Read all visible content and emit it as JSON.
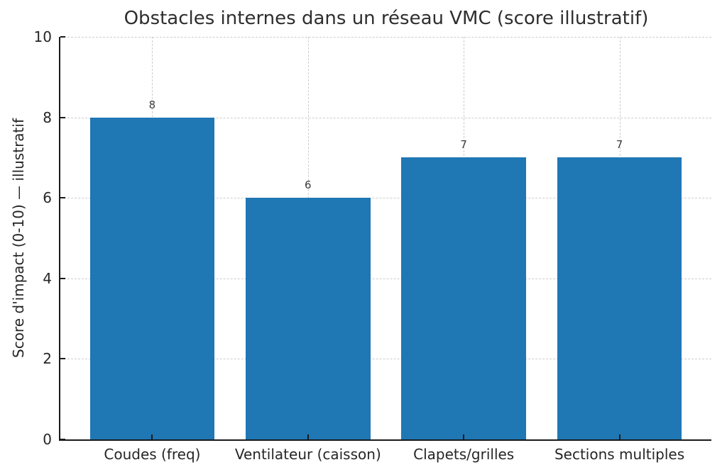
{
  "figure": {
    "background": "#ffffff"
  },
  "chart_data": {
    "type": "bar",
    "title": "Obstacles internes dans un réseau VMC (score illustratif)",
    "categories": [
      "Coudes (freq)",
      "Ventilateur (caisson)",
      "Clapets/grilles",
      "Sections multiples"
    ],
    "values": [
      8,
      6,
      7,
      7
    ],
    "bar_value_labels": [
      "8",
      "6",
      "7",
      "7"
    ],
    "xlabel": "",
    "ylabel": "Score d'impact (0-10) — illustratif",
    "ylim": [
      0,
      10
    ],
    "yticks": [
      0,
      2,
      4,
      6,
      8,
      10
    ],
    "xlim": [
      -0.59,
      3.59
    ],
    "bar_width": 0.8,
    "bar_color": "#1f77b4",
    "grid": {
      "visible": true,
      "axes": "both",
      "style": "dashed",
      "color": "#cdcdcd"
    },
    "legend": "none",
    "spines": [
      "left",
      "bottom"
    ],
    "tick_direction": "in"
  }
}
